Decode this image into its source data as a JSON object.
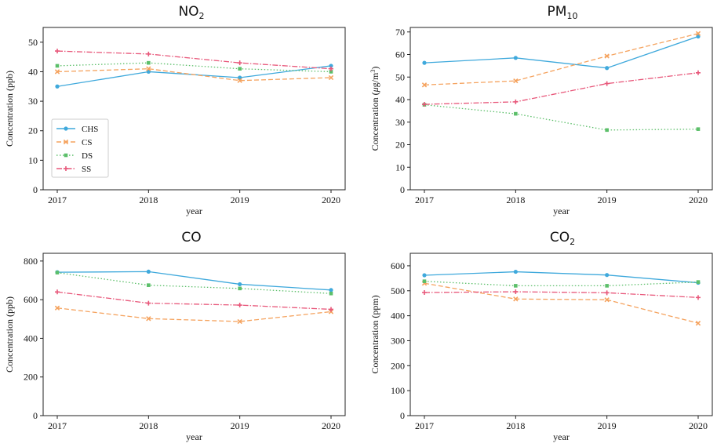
{
  "colors": {
    "CHS": "#3fa9dc",
    "CS": "#f5a35f",
    "DS": "#5cbf6a",
    "SS": "#e8577a"
  },
  "chart_data": [
    {
      "type": "line",
      "title_main": "NO",
      "title_sub": "2",
      "title_sub_type": "sub",
      "title_tail": "",
      "xlabel": "year",
      "ylabel": "Concentration (ppb)",
      "x": [
        "2017",
        "2018",
        "2019",
        "2020"
      ],
      "ylim": [
        0,
        55
      ],
      "yticks": [
        0,
        10,
        20,
        30,
        40,
        50
      ],
      "legend": [
        "CHS",
        "CS",
        "DS",
        "SS"
      ],
      "legend_position": "left",
      "series": [
        {
          "name": "CHS",
          "values": [
            35,
            40,
            38,
            42
          ]
        },
        {
          "name": "CS",
          "values": [
            40,
            41,
            37,
            38
          ]
        },
        {
          "name": "DS",
          "values": [
            42,
            43,
            41,
            40
          ]
        },
        {
          "name": "SS",
          "values": [
            47,
            46,
            43,
            41
          ]
        }
      ]
    },
    {
      "type": "line",
      "title_main": "PM",
      "title_sub": "10",
      "title_sub_type": "sub",
      "title_tail": "",
      "xlabel": "year",
      "ylabel_pre": "Concentration (",
      "ylabel_mu": "μ",
      "ylabel_mid": "g/m",
      "ylabel_sup": "3",
      "ylabel_post": ")",
      "x": [
        "2017",
        "2018",
        "2019",
        "2020"
      ],
      "ylim": [
        0,
        72
      ],
      "yticks": [
        0,
        10,
        20,
        30,
        40,
        50,
        60,
        70
      ],
      "series": [
        {
          "name": "CHS",
          "values": [
            56.3,
            58.5,
            54,
            68
          ]
        },
        {
          "name": "CS",
          "values": [
            46.5,
            48.3,
            59.3,
            69.3
          ]
        },
        {
          "name": "DS",
          "values": [
            37.7,
            33.7,
            26.5,
            26.9
          ]
        },
        {
          "name": "SS",
          "values": [
            37.9,
            39,
            47.1,
            51.9
          ]
        }
      ]
    },
    {
      "type": "line",
      "title_main": "CO",
      "title_sub": "",
      "title_sub_type": "",
      "title_tail": "",
      "xlabel": "year",
      "ylabel": "Concentration (ppb)",
      "x": [
        "2017",
        "2018",
        "2019",
        "2020"
      ],
      "ylim": [
        0,
        840
      ],
      "yticks": [
        0,
        200,
        400,
        600,
        800
      ],
      "series": [
        {
          "name": "CHS",
          "values": [
            742,
            745,
            680,
            650
          ]
        },
        {
          "name": "CS",
          "values": [
            557,
            502,
            487,
            538
          ]
        },
        {
          "name": "DS",
          "values": [
            740,
            675,
            658,
            632
          ]
        },
        {
          "name": "SS",
          "values": [
            640,
            582,
            572,
            550
          ]
        }
      ]
    },
    {
      "type": "line",
      "title_main": "CO",
      "title_sub": "2",
      "title_sub_type": "sub",
      "title_tail": "",
      "xlabel": "year",
      "ylabel": "Concentration (ppm)",
      "x": [
        "2017",
        "2018",
        "2019",
        "2020"
      ],
      "ylim": [
        0,
        650
      ],
      "yticks": [
        0,
        100,
        200,
        300,
        400,
        500,
        600
      ],
      "series": [
        {
          "name": "CHS",
          "values": [
            562,
            576,
            563,
            532
          ]
        },
        {
          "name": "CS",
          "values": [
            530,
            467,
            464,
            370
          ]
        },
        {
          "name": "DS",
          "values": [
            538,
            520,
            520,
            535
          ]
        },
        {
          "name": "SS",
          "values": [
            493,
            496,
            492,
            473
          ]
        }
      ]
    }
  ]
}
